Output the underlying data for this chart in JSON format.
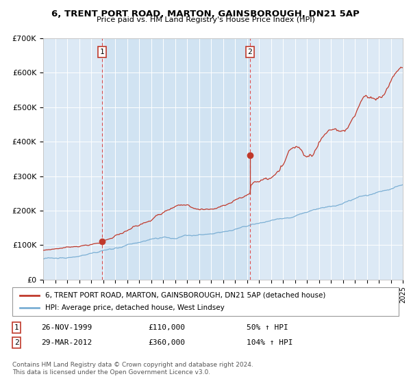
{
  "title": "6, TRENT PORT ROAD, MARTON, GAINSBOROUGH, DN21 5AP",
  "subtitle": "Price paid vs. HM Land Registry's House Price Index (HPI)",
  "background_color": "#ffffff",
  "plot_bg_color": "#dce9f5",
  "grid_color": "#ffffff",
  "ylim": [
    0,
    700000
  ],
  "yticks": [
    0,
    100000,
    200000,
    300000,
    400000,
    500000,
    600000,
    700000
  ],
  "ytick_labels": [
    "£0",
    "£100K",
    "£200K",
    "£300K",
    "£400K",
    "£500K",
    "£600K",
    "£700K"
  ],
  "sale1_date": 1999.9,
  "sale1_price": 110000,
  "sale1_label": "1",
  "sale2_date": 2012.25,
  "sale2_price": 360000,
  "sale2_label": "2",
  "line1_color": "#c0392b",
  "line2_color": "#7bafd4",
  "shade_color": "#dce9f5",
  "sale_marker_color": "#c0392b",
  "dashed_line_color": "#e05050",
  "legend_line1": "6, TRENT PORT ROAD, MARTON, GAINSBOROUGH, DN21 5AP (detached house)",
  "legend_line2": "HPI: Average price, detached house, West Lindsey",
  "annotation1_date": "26-NOV-1999",
  "annotation1_price": "£110,000",
  "annotation1_pct": "50% ↑ HPI",
  "annotation2_date": "29-MAR-2012",
  "annotation2_price": "£360,000",
  "annotation2_pct": "104% ↑ HPI",
  "footer": "Contains HM Land Registry data © Crown copyright and database right 2024.\nThis data is licensed under the Open Government Licence v3.0.",
  "xmin": 1995,
  "xmax": 2025
}
